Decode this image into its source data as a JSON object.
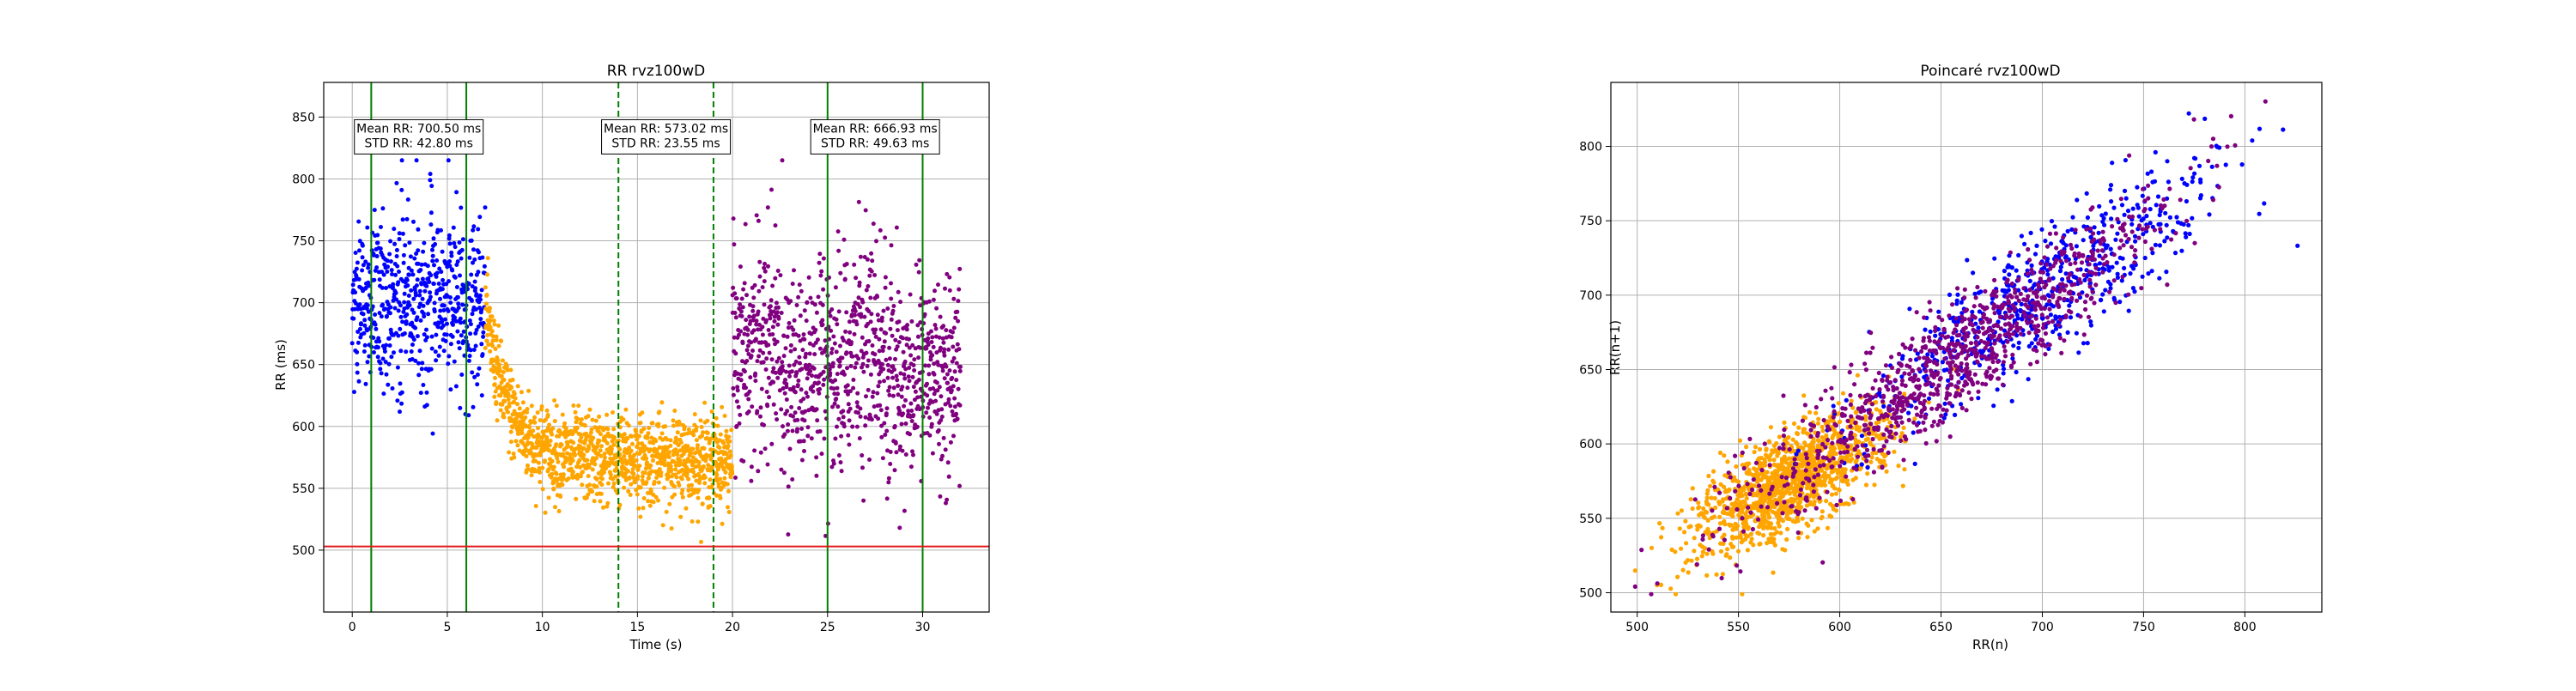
{
  "chart_data": [
    {
      "type": "scatter",
      "title": "RR rvz100wD",
      "xlabel": "Time (s)",
      "ylabel": "RR (ms)",
      "xlim": [
        -1.5,
        33.5
      ],
      "ylim": [
        450,
        878
      ],
      "xticks": [
        0,
        5,
        10,
        15,
        20,
        25,
        30
      ],
      "yticks": [
        500,
        550,
        600,
        650,
        700,
        750,
        800,
        850
      ],
      "grid": true,
      "series": [
        {
          "color": "#0000ff",
          "x_range": [
            0,
            7
          ],
          "samples": 600,
          "mean": 700.5,
          "std": 42.8
        },
        {
          "color": "#ffa500",
          "x_range": [
            7,
            20
          ],
          "samples": 1250,
          "mean": 573.02,
          "std": 23.55
        },
        {
          "color": "#800080",
          "x_range": [
            20,
            32
          ],
          "samples": 1000,
          "mean": 666.93,
          "std": 49.63
        }
      ],
      "vlines": [
        {
          "x": 1,
          "style": "solid",
          "color": "#008000"
        },
        {
          "x": 6,
          "style": "solid",
          "color": "#008000"
        },
        {
          "x": 14,
          "style": "dashed",
          "color": "#008000"
        },
        {
          "x": 19,
          "style": "dashed",
          "color": "#008000"
        },
        {
          "x": 25,
          "style": "solid",
          "color": "#008000"
        },
        {
          "x": 30,
          "style": "solid",
          "color": "#008000"
        }
      ],
      "hline": {
        "y": 503,
        "color": "#e31a1c"
      },
      "annotations": [
        {
          "x": 3.5,
          "y": 834,
          "lines": [
            "Mean RR: 700.50 ms",
            "STD RR: 42.80 ms"
          ]
        },
        {
          "x": 16.5,
          "y": 834,
          "lines": [
            "Mean RR: 573.02 ms",
            "STD RR: 23.55 ms"
          ]
        },
        {
          "x": 27.5,
          "y": 834,
          "lines": [
            "Mean RR: 666.93 ms",
            "STD RR: 49.63 ms"
          ]
        }
      ]
    },
    {
      "type": "scatter",
      "title": "Poincaré rvz100wD",
      "xlabel": "RR(n)",
      "ylabel": "RR(n+1)",
      "xlim": [
        487,
        838
      ],
      "ylim": [
        487,
        843
      ],
      "xticks": [
        500,
        550,
        600,
        650,
        700,
        750,
        800
      ],
      "yticks": [
        500,
        550,
        600,
        650,
        700,
        750,
        800
      ],
      "grid": true,
      "series": [
        {
          "color": "#ffa500",
          "center": [
            575,
            575
          ],
          "spread_along": 22,
          "spread_across": 9,
          "samples": 1250
        },
        {
          "color": "#0000ff",
          "center": [
            700,
            700
          ],
          "spread_along": 42,
          "spread_across": 11,
          "samples": 600
        },
        {
          "color": "#800080",
          "center": [
            655,
            655
          ],
          "spread_along": 50,
          "spread_across": 10,
          "samples": 1000
        }
      ]
    }
  ]
}
